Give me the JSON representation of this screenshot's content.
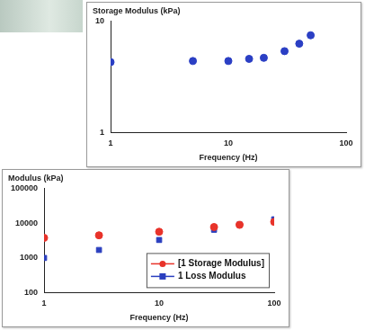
{
  "chart_data": [
    {
      "type": "scatter",
      "ylabel": "Storage Modulus (kPa)",
      "xlabel": "Frequency (Hz)",
      "x": [
        1,
        5,
        10,
        15,
        20,
        30,
        40,
        50
      ],
      "values": [
        4.3,
        4.4,
        4.4,
        4.6,
        4.7,
        5.4,
        6.3,
        7.5
      ],
      "color": "#2b3fc4",
      "marker": "circle",
      "log": true,
      "grid": false,
      "xlim": [
        1,
        100
      ],
      "xticks": [
        1,
        10,
        100
      ],
      "ylim": [
        1,
        10
      ],
      "yticks": [
        1,
        10
      ]
    },
    {
      "type": "scatter",
      "ylabel": "Modulus (kPa)",
      "xlabel": "Frequency (Hz)",
      "x": [
        1,
        3,
        10,
        30,
        50,
        100
      ],
      "series": [
        {
          "name": "[1 Storage Modulus]",
          "color": "#e8332a",
          "marker": "circle",
          "values": [
            3800,
            4500,
            5700,
            7800,
            9000,
            11000
          ]
        },
        {
          "name": "1 Loss Modulus",
          "color": "#2a3fbf",
          "marker": "square",
          "values": [
            1000,
            1700,
            3300,
            6500,
            9200,
            13000
          ]
        }
      ],
      "log": true,
      "grid": false,
      "legend": "lower right",
      "xlim": [
        1,
        100
      ],
      "xticks": [
        1,
        10,
        100
      ],
      "ylim": [
        100,
        100000
      ],
      "yticks": [
        100,
        1000,
        10000,
        100000
      ]
    }
  ]
}
